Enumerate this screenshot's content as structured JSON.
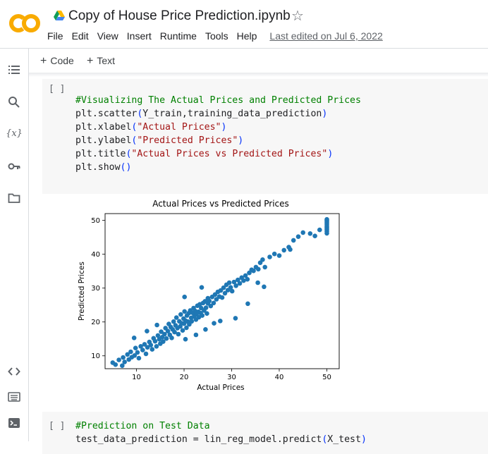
{
  "app": {
    "notebook_title": "Copy of House Price Prediction.ipynb",
    "menu": [
      "File",
      "Edit",
      "View",
      "Insert",
      "Runtime",
      "Tools",
      "Help"
    ],
    "last_edited": "Last edited on Jul 6, 2022"
  },
  "toolbar": {
    "code_label": "Code",
    "text_label": "Text"
  },
  "sidebar": {
    "icons": [
      "table-of-contents-icon",
      "search-icon",
      "variables-icon",
      "key-icon",
      "folder-icon",
      "code-snippets-icon",
      "command-palette-icon",
      "terminal-icon"
    ],
    "variables_label": "{x}"
  },
  "cells": [
    {
      "run_label": "[ ]",
      "lines": [
        [
          {
            "t": "#Visualizing The Actual Prices and Predicted Prices",
            "c": "cm"
          }
        ],
        [
          {
            "t": "plt.scatter",
            "c": ""
          },
          {
            "t": "(",
            "c": "par"
          },
          {
            "t": "Y_train,training_data_prediction",
            "c": ""
          },
          {
            "t": ")",
            "c": "par"
          }
        ],
        [
          {
            "t": "plt.xlabel",
            "c": ""
          },
          {
            "t": "(",
            "c": "par"
          },
          {
            "t": "\"Actual Prices\"",
            "c": "str"
          },
          {
            "t": ")",
            "c": "par"
          }
        ],
        [
          {
            "t": "plt.ylabel",
            "c": ""
          },
          {
            "t": "(",
            "c": "par"
          },
          {
            "t": "\"Predicted Prices\"",
            "c": "str"
          },
          {
            "t": ")",
            "c": "par"
          }
        ],
        [
          {
            "t": "plt.title",
            "c": ""
          },
          {
            "t": "(",
            "c": "par"
          },
          {
            "t": "\"Actual Prices vs Predicted Prices\"",
            "c": "str"
          },
          {
            "t": ")",
            "c": "par"
          }
        ],
        [
          {
            "t": "plt.show",
            "c": ""
          },
          {
            "t": "()",
            "c": "par"
          }
        ]
      ]
    },
    {
      "run_label": "[ ]",
      "lines": [
        [
          {
            "t": "#Prediction on Test Data",
            "c": "cm"
          }
        ],
        [
          {
            "t": "test_data_prediction = lin_reg_model.predict",
            "c": ""
          },
          {
            "t": "(",
            "c": "par"
          },
          {
            "t": "X_test",
            "c": ""
          },
          {
            "t": ")",
            "c": "par"
          }
        ]
      ]
    }
  ],
  "chart_data": {
    "type": "scatter",
    "title": "Actual Prices vs Predicted Prices",
    "xlabel": "Actual Prices",
    "ylabel": "Predicted Prices",
    "xlim": [
      3.4,
      52.6
    ],
    "ylim": [
      6.2,
      52.0
    ],
    "xticks": [
      10,
      20,
      30,
      40,
      50
    ],
    "yticks": [
      10,
      20,
      30,
      40,
      50
    ],
    "grid": false,
    "color": "#1f77b4",
    "points": [
      [
        5,
        8
      ],
      [
        5.6,
        7.4
      ],
      [
        6.3,
        8.8
      ],
      [
        7,
        7.1
      ],
      [
        7.2,
        9.5
      ],
      [
        7.5,
        8.2
      ],
      [
        8.1,
        10.4
      ],
      [
        8.4,
        8.9
      ],
      [
        8.8,
        11.2
      ],
      [
        9,
        9.6
      ],
      [
        9.6,
        10.1
      ],
      [
        9.8,
        12.3
      ],
      [
        10.2,
        11
      ],
      [
        10.5,
        9.3
      ],
      [
        10.9,
        12.8
      ],
      [
        11.3,
        11.7
      ],
      [
        11.7,
        13.4
      ],
      [
        12,
        10.6
      ],
      [
        12.3,
        12.5
      ],
      [
        12.7,
        14.1
      ],
      [
        13,
        13.2
      ],
      [
        13.3,
        11.9
      ],
      [
        13.6,
        15.2
      ],
      [
        13.9,
        14.3
      ],
      [
        14.2,
        12.8
      ],
      [
        14.5,
        16
      ],
      [
        14.8,
        14.9
      ],
      [
        15,
        13.6
      ],
      [
        15.2,
        17.1
      ],
      [
        15.4,
        15.5
      ],
      [
        15.6,
        14.2
      ],
      [
        15.9,
        16.4
      ],
      [
        16.1,
        18.2
      ],
      [
        16.3,
        15.1
      ],
      [
        16.6,
        17.3
      ],
      [
        16.8,
        19.4
      ],
      [
        17,
        16.2
      ],
      [
        17.2,
        18.5
      ],
      [
        17.4,
        15.3
      ],
      [
        17.6,
        17.8
      ],
      [
        17.8,
        20.1
      ],
      [
        18,
        17
      ],
      [
        18.2,
        19
      ],
      [
        18.4,
        21.3
      ],
      [
        18.6,
        18.2
      ],
      [
        18.8,
        16.4
      ],
      [
        19,
        20.2
      ],
      [
        19.2,
        18.7
      ],
      [
        19.3,
        22.2
      ],
      [
        19.5,
        19.6
      ],
      [
        19.7,
        17.5
      ],
      [
        19.9,
        21
      ],
      [
        20,
        19.5
      ],
      [
        20.1,
        23.1
      ],
      [
        20.3,
        20.4
      ],
      [
        20.5,
        18.3
      ],
      [
        20.6,
        21.9
      ],
      [
        20.8,
        20.1
      ],
      [
        21,
        22.6
      ],
      [
        21.1,
        19.3
      ],
      [
        21.3,
        23.4
      ],
      [
        21.5,
        21.2
      ],
      [
        21.6,
        20.2
      ],
      [
        21.8,
        22.7
      ],
      [
        22,
        24.1
      ],
      [
        22.1,
        21.6
      ],
      [
        22.3,
        23.3
      ],
      [
        22.5,
        20.7
      ],
      [
        22.6,
        22.2
      ],
      [
        22.8,
        24.8
      ],
      [
        23,
        23
      ],
      [
        23.1,
        21.4
      ],
      [
        23.3,
        25.2
      ],
      [
        23.5,
        22.6
      ],
      [
        23.6,
        24.1
      ],
      [
        23.8,
        21.9
      ],
      [
        24,
        25.6
      ],
      [
        24.2,
        23.4
      ],
      [
        24.4,
        26.1
      ],
      [
        24.6,
        24.2
      ],
      [
        24.8,
        22.5
      ],
      [
        25,
        25.5
      ],
      [
        25,
        27
      ],
      [
        25.3,
        26.2
      ],
      [
        25.6,
        24.7
      ],
      [
        25.9,
        27.4
      ],
      [
        26.2,
        25.6
      ],
      [
        26.5,
        28.1
      ],
      [
        26.8,
        26.7
      ],
      [
        27.1,
        28.9
      ],
      [
        27.4,
        27.5
      ],
      [
        27.7,
        29.3
      ],
      [
        28,
        27.2
      ],
      [
        28.3,
        30.1
      ],
      [
        28.6,
        28.5
      ],
      [
        28.9,
        31
      ],
      [
        29.2,
        29.4
      ],
      [
        29.5,
        31.6
      ],
      [
        29.8,
        30.2
      ],
      [
        30.1,
        29.1
      ],
      [
        30.5,
        31.8
      ],
      [
        30.9,
        30.7
      ],
      [
        31.3,
        32.4
      ],
      [
        31.7,
        31.4
      ],
      [
        32.1,
        33.1
      ],
      [
        32.5,
        32.2
      ],
      [
        32.9,
        33.7
      ],
      [
        33.3,
        32.6
      ],
      [
        33.7,
        34.5
      ],
      [
        34.2,
        35.4
      ],
      [
        34.6,
        35.1
      ],
      [
        35.1,
        36.2
      ],
      [
        35.6,
        35.6
      ],
      [
        36,
        37.5
      ],
      [
        36.5,
        38.4
      ],
      [
        37,
        36.2
      ],
      [
        38,
        39.2
      ],
      [
        39,
        40.1
      ],
      [
        40,
        39.6
      ],
      [
        41,
        41.2
      ],
      [
        42,
        42.1
      ],
      [
        43,
        44.1
      ],
      [
        44,
        45.2
      ],
      [
        45,
        46.4
      ],
      [
        46.5,
        46.1
      ],
      [
        47.5,
        45.4
      ],
      [
        48.5,
        47.2
      ],
      [
        20.3,
        14.9
      ],
      [
        22.5,
        16.2
      ],
      [
        24.5,
        17.8
      ],
      [
        26.3,
        19.6
      ],
      [
        27.6,
        20.3
      ],
      [
        30.8,
        21.1
      ],
      [
        33.4,
        25.4
      ],
      [
        35.5,
        31.6
      ],
      [
        36.8,
        30.4
      ],
      [
        42.3,
        41.4
      ],
      [
        23.7,
        30.2
      ],
      [
        20.1,
        27.4
      ],
      [
        14.3,
        19.1
      ],
      [
        12.2,
        17.3
      ],
      [
        9.5,
        15.3
      ],
      [
        50,
        46.2
      ],
      [
        50,
        46.8
      ],
      [
        50,
        47.3
      ],
      [
        50,
        47.8
      ],
      [
        50,
        48.2
      ],
      [
        50,
        48.7
      ],
      [
        50,
        49.1
      ],
      [
        50,
        49.5
      ],
      [
        50,
        49.9
      ],
      [
        50,
        50.3
      ]
    ]
  }
}
